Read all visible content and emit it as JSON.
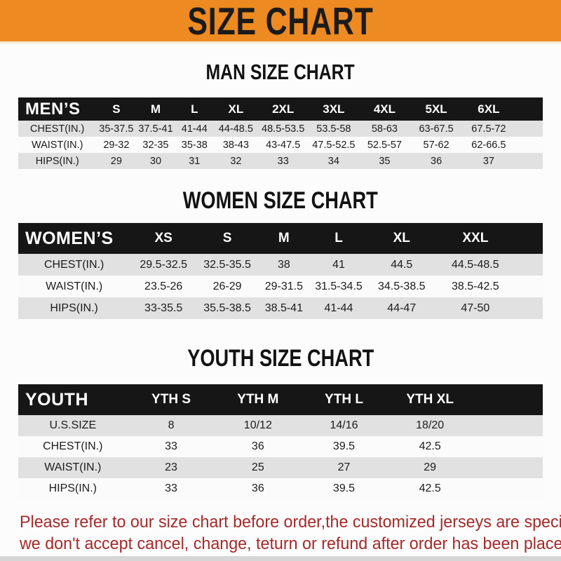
{
  "banner": {
    "title": "SIZE CHART"
  },
  "colors": {
    "banner_orange": "#ED8A21",
    "header_black": "#161616",
    "row_shade_gray": "#E1E1E1",
    "note_red": "#A52A2A"
  },
  "chart_data": [
    {
      "type": "table",
      "title": "MAN SIZE CHART",
      "corner_label": "MEN’S",
      "columns": [
        "S",
        "M",
        "L",
        "XL",
        "2XL",
        "3XL",
        "4XL",
        "5XL",
        "6XL"
      ],
      "rows": [
        {
          "label": "CHEST(IN.)",
          "values": [
            "35-37.5",
            "37.5-41",
            "41-44",
            "44-48.5",
            "48.5-53.5",
            "53.5-58",
            "58-63",
            "63-67.5",
            "67.5-72"
          ]
        },
        {
          "label": "WAIST(IN.)",
          "values": [
            "29-32",
            "32-35",
            "35-38",
            "38-43",
            "43-47.5",
            "47.5-52.5",
            "52.5-57",
            "57-62",
            "62-66.5"
          ]
        },
        {
          "label": "HIPS(IN.)",
          "values": [
            "29",
            "30",
            "31",
            "32",
            "33",
            "34",
            "35",
            "36",
            "37"
          ]
        }
      ]
    },
    {
      "type": "table",
      "title": "WOMEN SIZE CHART",
      "corner_label": "WOMEN’S",
      "columns": [
        "XS",
        "S",
        "M",
        "L",
        "XL",
        "XXL"
      ],
      "rows": [
        {
          "label": "CHEST(IN.)",
          "values": [
            "29.5-32.5",
            "32.5-35.5",
            "38",
            "41",
            "44.5",
            "44.5-48.5"
          ]
        },
        {
          "label": "WAIST(IN.)",
          "values": [
            "23.5-26",
            "26-29",
            "29-31.5",
            "31.5-34.5",
            "34.5-38.5",
            "38.5-42.5"
          ]
        },
        {
          "label": "HIPS(IN.)",
          "values": [
            "33-35.5",
            "35.5-38.5",
            "38.5-41",
            "41-44",
            "44-47",
            "47-50"
          ]
        }
      ]
    },
    {
      "type": "table",
      "title": "YOUTH SIZE CHART",
      "corner_label": "YOUTH",
      "columns": [
        "YTH S",
        "YTH M",
        "YTH L",
        "YTH XL"
      ],
      "rows": [
        {
          "label": "U.S.SIZE",
          "values": [
            "8",
            "10/12",
            "14/16",
            "18/20"
          ]
        },
        {
          "label": "CHEST(IN.)",
          "values": [
            "33",
            "36",
            "39.5",
            "42.5"
          ]
        },
        {
          "label": "WAIST(IN.)",
          "values": [
            "23",
            "25",
            "27",
            "29"
          ]
        },
        {
          "label": "HIPS(IN.)",
          "values": [
            "33",
            "36",
            "39.5",
            "42.5"
          ]
        }
      ]
    }
  ],
  "footer_note": {
    "line1": "Please refer to our size chart before order,the customized jerseys are special products,",
    "line2": "we don't accept cancel, change, teturn or refund after order has been placed!"
  }
}
